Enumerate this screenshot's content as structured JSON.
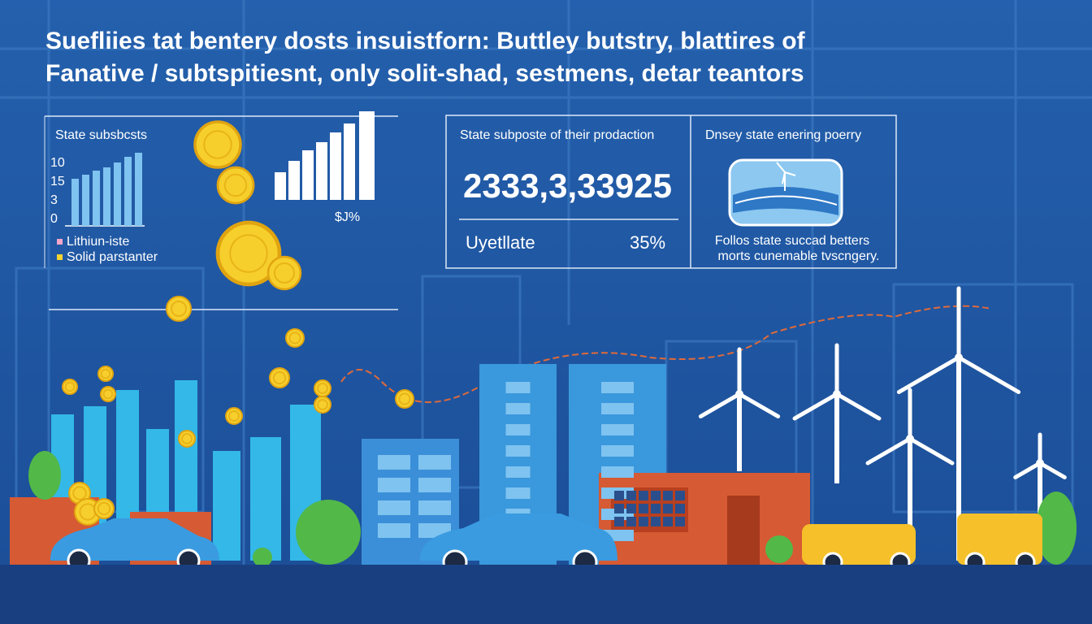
{
  "header": {
    "title_lines": [
      "Suefliies tat bentery dosts insuistforn: Buttley butstry, blattires of",
      "Fanative / subtspitiesnt, only solit-shad, sestmens, detar teantors"
    ]
  },
  "left_panel": {
    "title": "State subsbcsts",
    "axis_labels": [
      "10",
      "15",
      "3",
      "0"
    ],
    "legend": [
      "Lithiun-iste",
      "Solid parstanter"
    ],
    "chart_note": "$J%"
  },
  "middle_panel": {
    "title": "State subposte of their prodaction",
    "big_number": "2333,3,33925",
    "label": "Uyetllate",
    "percent": "35%"
  },
  "right_panel": {
    "title": "Dnsey state enering poerry",
    "caption_lines": [
      "Follos state succad betters",
      "morts cunemable tvscngery."
    ]
  }
}
